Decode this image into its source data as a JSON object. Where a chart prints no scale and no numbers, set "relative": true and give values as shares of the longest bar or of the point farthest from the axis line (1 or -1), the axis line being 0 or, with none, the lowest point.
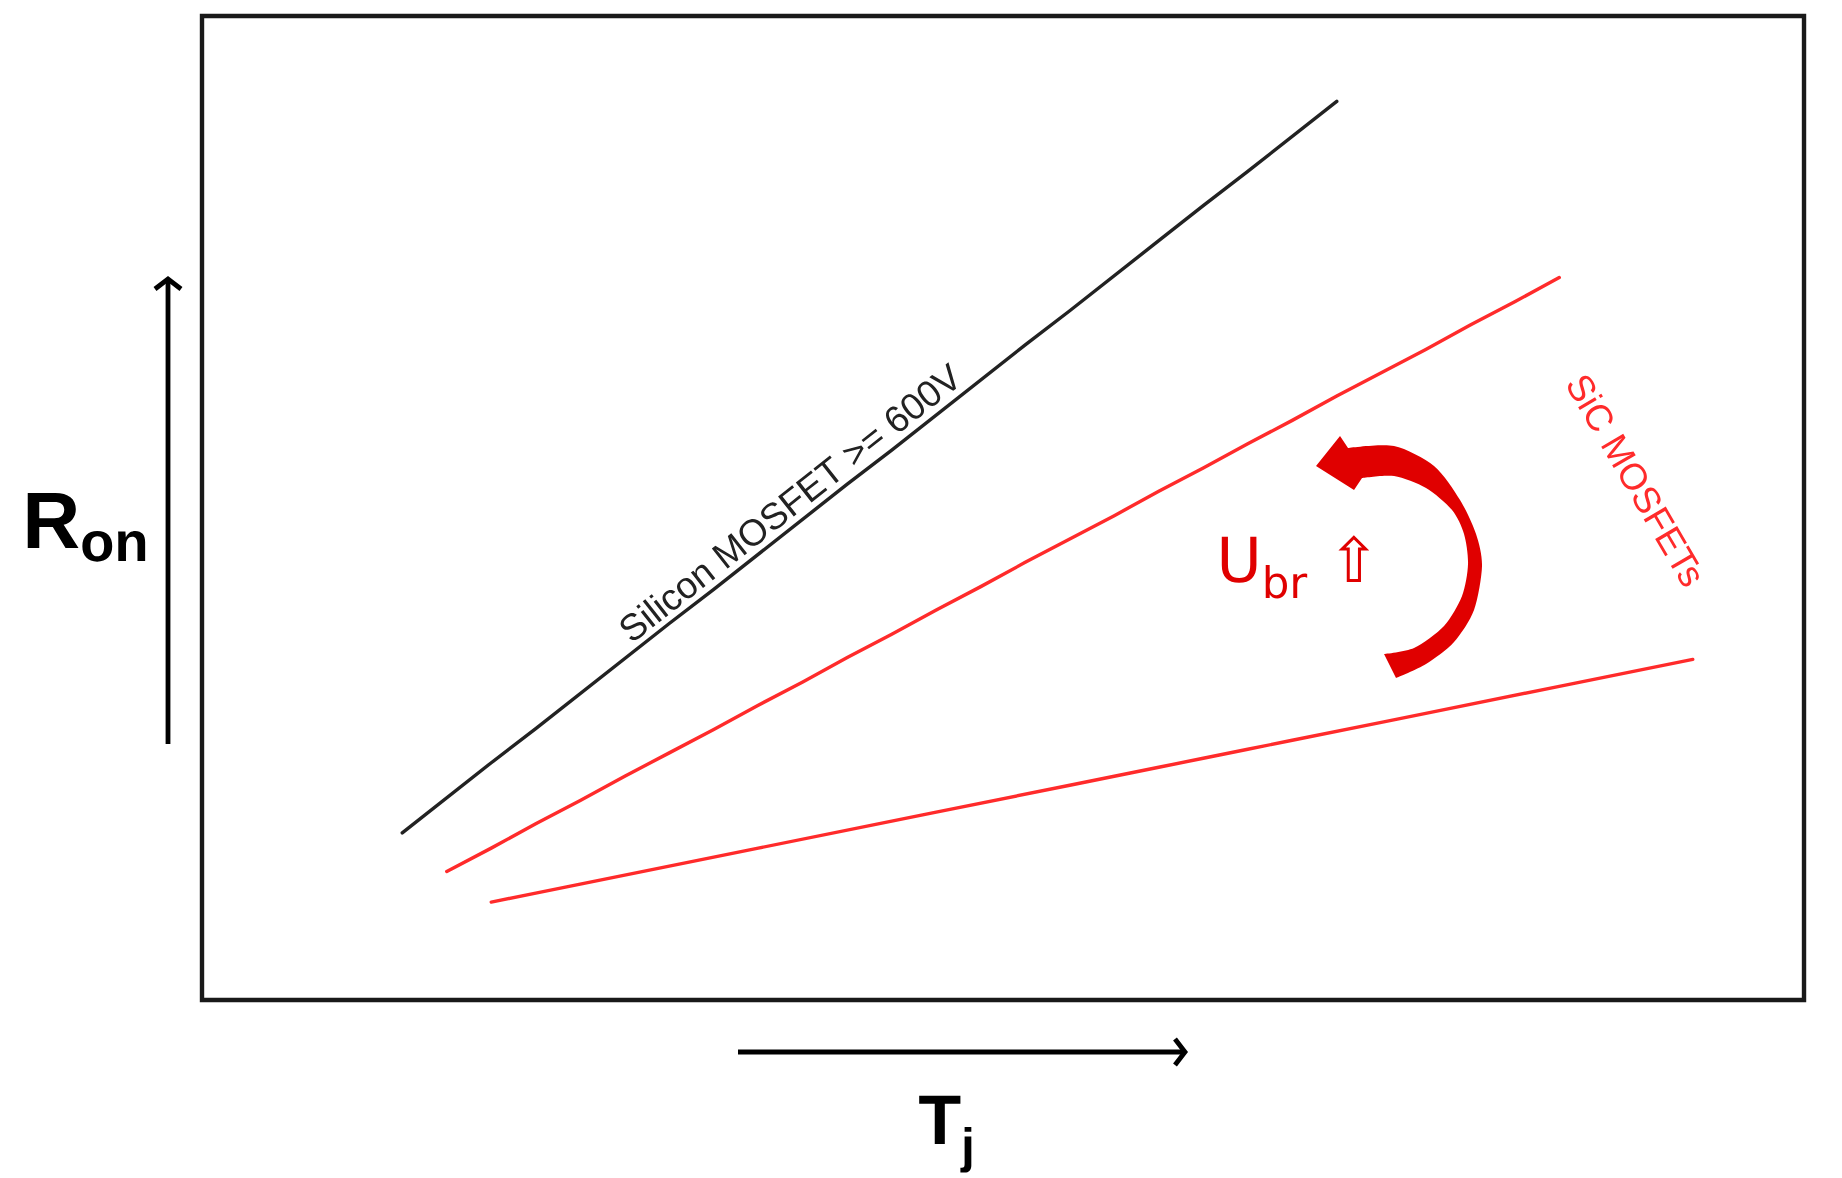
{
  "chart_data": {
    "type": "line",
    "relative": true,
    "xlabel": "T$_{j}$",
    "ylabel": "R$_{on}$",
    "categories": [
      null,
      null,
      null,
      null,
      null,
      null,
      null,
      null,
      null,
      null,
      null,
      null,
      null,
      null,
      null,
      null,
      null,
      null,
      null,
      null,
      null,
      null,
      null,
      null,
      null,
      null,
      null,
      null,
      null,
      null,
      null,
      null,
      null,
      null,
      null,
      null
    ],
    "series": [
      {
        "name": "Silicon MOSFET >= 600V",
        "color": "#222222",
        "values": [
          null,
          null,
          null,
          null,
          0.186,
          0.225,
          0.264,
          0.302,
          0.341,
          0.38,
          0.419,
          0.457,
          0.496,
          0.535,
          0.574,
          0.612,
          0.651,
          0.69,
          0.729,
          0.767,
          0.806,
          0.845,
          0.884,
          0.922,
          0.961,
          1,
          null,
          null,
          null,
          null,
          null,
          null,
          null,
          null,
          null,
          null
        ]
      },
      {
        "color": "#ff2b2b",
        "values": [
          null,
          null,
          null,
          null,
          null,
          0.143,
          0.169,
          0.196,
          0.222,
          0.249,
          0.275,
          0.301,
          0.328,
          0.354,
          0.381,
          0.407,
          0.434,
          0.46,
          0.487,
          0.513,
          0.539,
          0.566,
          0.592,
          0.619,
          0.645,
          0.672,
          0.698,
          0.724,
          0.751,
          0.777,
          0.804,
          null,
          null,
          null,
          null,
          null
        ]
      },
      {
        "color": "#ff2b2b",
        "values": [
          null,
          null,
          null,
          null,
          null,
          null,
          0.109,
          0.119,
          0.129,
          0.139,
          0.149,
          0.159,
          0.169,
          0.179,
          0.189,
          0.199,
          0.209,
          0.219,
          0.229,
          0.239,
          0.249,
          0.259,
          0.269,
          0.279,
          0.289,
          0.299,
          0.309,
          0.319,
          0.329,
          0.339,
          0.349,
          0.359,
          0.369,
          0.379,
          null,
          null
        ]
      }
    ],
    "annotations": [
      "SiC MOSFETs",
      "U$_{br}$ ⇧"
    ]
  }
}
